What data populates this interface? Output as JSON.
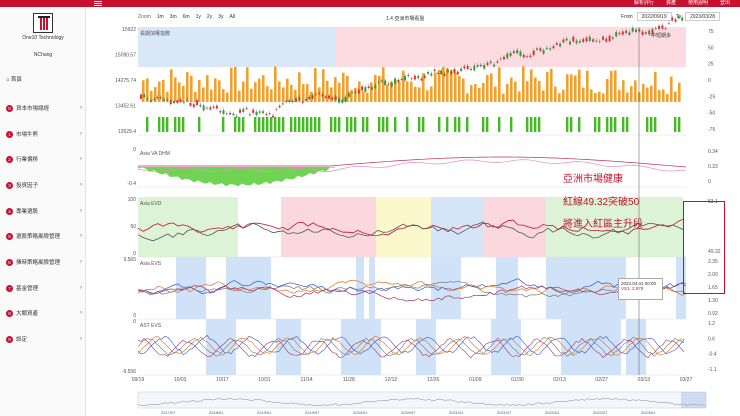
{
  "app": {
    "company": "One10 Technology",
    "user": "NChang",
    "topbar": [
      "解析評行",
      "資產",
      "使用說明",
      "登出"
    ]
  },
  "sidebar": {
    "home": "首頁",
    "items": [
      {
        "num": "0",
        "label": "資本市場總經"
      },
      {
        "num": "1",
        "label": "市場牛熊"
      },
      {
        "num": "2",
        "label": "行業偏移"
      },
      {
        "num": "3",
        "label": "投資因子"
      },
      {
        "num": "4",
        "label": "專業選股"
      },
      {
        "num": "5",
        "label": "選股策略風險管理"
      },
      {
        "num": "6",
        "label": "擇時策略風險管理"
      },
      {
        "num": "7",
        "label": "基金管理"
      },
      {
        "num": "8",
        "label": "大類資產"
      },
      {
        "num": "9",
        "label": "設定"
      }
    ]
  },
  "toolbar": {
    "zoom_label": "Zoom",
    "zoom_options": [
      "1m",
      "3m",
      "6m",
      "1y",
      "2y",
      "3y",
      "All"
    ],
    "title": "1.4 亞洲市場看盤",
    "from_label": "From",
    "from_value": "2022/09/19",
    "to_label": "To",
    "to_value": "2023/03/28"
  },
  "panels": {
    "price": {
      "label": "長期加權指數",
      "left_ticks": [
        "15922",
        "15090.57",
        "14275.74",
        "13452.61",
        "12629.4"
      ],
      "right_ticks": [
        "75",
        "50",
        "25",
        "0",
        "-25",
        "-50",
        "-75"
      ],
      "note": "中短期多"
    },
    "dhm": {
      "label": "Asia VA DHM",
      "left_ticks": [
        "0",
        "-0.4"
      ],
      "right_ticks": [
        "0.34",
        "0.33",
        "0"
      ]
    },
    "evd": {
      "label": "Asia EVD",
      "left_ticks": [
        "100",
        "50",
        "0"
      ],
      "right_ticks": [
        "53.1",
        "49.32"
      ]
    },
    "evs": {
      "label": "Asia EVS",
      "left_ticks": [
        "9.565",
        "0"
      ],
      "right_ticks": [
        "2.35",
        "2.00",
        "1.65",
        "1.30",
        "0.92"
      ]
    },
    "ast": {
      "label": "AST EVS",
      "left_ticks": [
        "0",
        "-9.556"
      ],
      "right_ticks": [
        "1.2",
        "0.6",
        "-0.4",
        "-1.1"
      ]
    }
  },
  "x_dates": [
    "09/19",
    "10/03",
    "10/17",
    "10/31",
    "11/14",
    "11/28",
    "12/12",
    "12/26",
    "01/09",
    "01/30",
    "02/13",
    "02/27",
    "03/13",
    "03/27"
  ],
  "navigator_years": [
    "2017/07",
    "2018/01",
    "2019/01",
    "2019/07",
    "2020/01",
    "2020/07",
    "2021/01",
    "2021/07",
    "2022/01",
    "2022/07",
    "2023/01"
  ],
  "tooltip": {
    "date": "2023.03.01 00:00",
    "value": "VS1: 2.978"
  },
  "annotation": {
    "line1": "亞洲市場健康",
    "line2": "紅線49.32突破50",
    "line3": "將進入紅區主升段"
  },
  "colors": {
    "accent": "#c8102e",
    "bar_orange": "#f0a030",
    "bar_green": "#44bb22",
    "band_blue": "#cfe2f7",
    "band_pink": "#fbd3da",
    "band_green": "#d9f2d0",
    "band_yellow": "#fbf7c8"
  }
}
